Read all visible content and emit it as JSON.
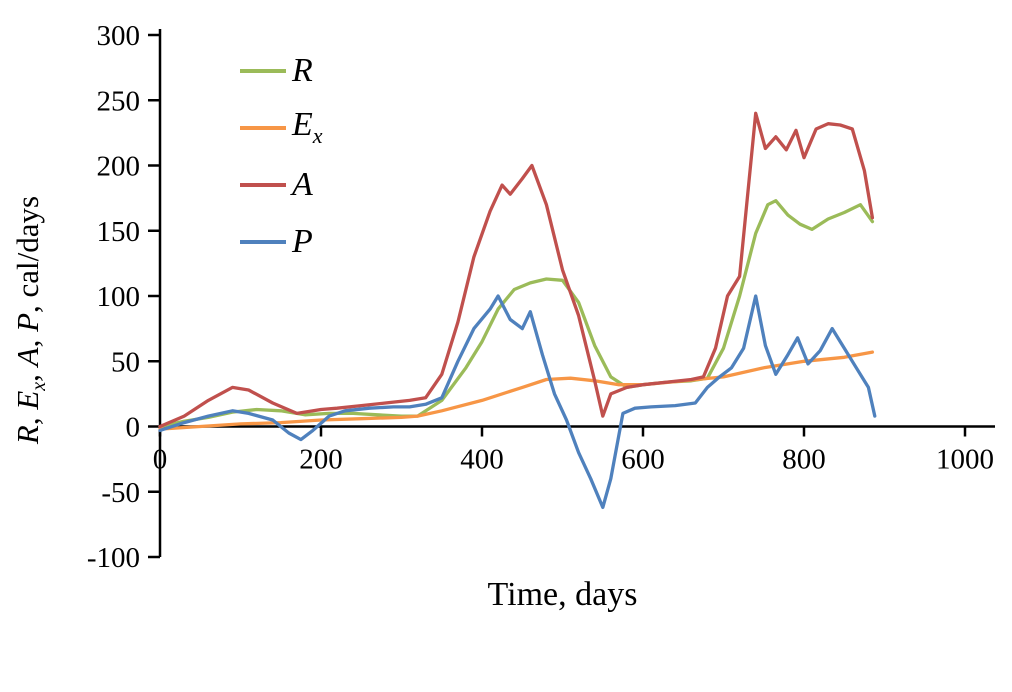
{
  "chart_data": {
    "type": "line",
    "title": "",
    "xlabel": "Time, days",
    "ylabel_plain": "R, Ex, A, P, cal/days",
    "ylabel_parts": [
      {
        "text": "R",
        "italic": true
      },
      {
        "text": ", ",
        "italic": false
      },
      {
        "text": "E",
        "italic": true
      },
      {
        "text": "x",
        "italic": true,
        "sub": true
      },
      {
        "text": ", ",
        "italic": false
      },
      {
        "text": "A",
        "italic": true
      },
      {
        "text": ", ",
        "italic": false
      },
      {
        "text": "P",
        "italic": true
      },
      {
        "text": ", cal/days",
        "italic": false
      }
    ],
    "xlim": [
      0,
      1000
    ],
    "ylim": [
      -100,
      300
    ],
    "x_ticks": [
      0,
      200,
      400,
      600,
      800,
      1000
    ],
    "y_ticks": [
      300,
      250,
      200,
      150,
      100,
      50,
      0,
      -50,
      -100
    ],
    "grid": false,
    "legend_position": "top-left-inside",
    "series": [
      {
        "name": "R",
        "label": "R",
        "color": "#9BBB59",
        "points": [
          [
            0,
            0
          ],
          [
            30,
            4
          ],
          [
            60,
            7
          ],
          [
            90,
            11
          ],
          [
            120,
            13
          ],
          [
            150,
            12
          ],
          [
            180,
            9
          ],
          [
            210,
            10
          ],
          [
            240,
            10
          ],
          [
            270,
            9
          ],
          [
            300,
            8
          ],
          [
            320,
            8
          ],
          [
            350,
            20
          ],
          [
            380,
            45
          ],
          [
            400,
            65
          ],
          [
            420,
            90
          ],
          [
            440,
            105
          ],
          [
            460,
            110
          ],
          [
            480,
            113
          ],
          [
            500,
            112
          ],
          [
            520,
            95
          ],
          [
            540,
            62
          ],
          [
            560,
            38
          ],
          [
            580,
            30
          ],
          [
            600,
            32
          ],
          [
            630,
            34
          ],
          [
            660,
            35
          ],
          [
            680,
            37
          ],
          [
            700,
            60
          ],
          [
            720,
            100
          ],
          [
            740,
            148
          ],
          [
            755,
            170
          ],
          [
            765,
            173
          ],
          [
            780,
            162
          ],
          [
            795,
            155
          ],
          [
            810,
            151
          ],
          [
            830,
            159
          ],
          [
            850,
            164
          ],
          [
            870,
            170
          ],
          [
            885,
            157
          ]
        ]
      },
      {
        "name": "Ex",
        "label": "E_x",
        "color": "#F79646",
        "points": [
          [
            0,
            -2
          ],
          [
            50,
            0
          ],
          [
            100,
            2
          ],
          [
            150,
            3
          ],
          [
            200,
            5
          ],
          [
            250,
            6
          ],
          [
            300,
            7
          ],
          [
            320,
            8
          ],
          [
            350,
            12
          ],
          [
            400,
            20
          ],
          [
            450,
            30
          ],
          [
            480,
            36
          ],
          [
            510,
            37
          ],
          [
            540,
            35
          ],
          [
            570,
            32
          ],
          [
            600,
            32
          ],
          [
            650,
            35
          ],
          [
            700,
            38
          ],
          [
            750,
            45
          ],
          [
            800,
            50
          ],
          [
            850,
            53
          ],
          [
            885,
            57
          ]
        ]
      },
      {
        "name": "A",
        "label": "A",
        "color": "#C0504D",
        "points": [
          [
            0,
            0
          ],
          [
            30,
            8
          ],
          [
            60,
            20
          ],
          [
            90,
            30
          ],
          [
            110,
            28
          ],
          [
            140,
            18
          ],
          [
            170,
            10
          ],
          [
            200,
            13
          ],
          [
            220,
            14
          ],
          [
            250,
            16
          ],
          [
            280,
            18
          ],
          [
            310,
            20
          ],
          [
            330,
            22
          ],
          [
            350,
            40
          ],
          [
            370,
            80
          ],
          [
            390,
            130
          ],
          [
            410,
            165
          ],
          [
            425,
            185
          ],
          [
            435,
            178
          ],
          [
            450,
            190
          ],
          [
            462,
            200
          ],
          [
            480,
            170
          ],
          [
            500,
            120
          ],
          [
            520,
            85
          ],
          [
            540,
            35
          ],
          [
            550,
            8
          ],
          [
            560,
            25
          ],
          [
            580,
            30
          ],
          [
            600,
            32
          ],
          [
            630,
            34
          ],
          [
            660,
            36
          ],
          [
            675,
            38
          ],
          [
            690,
            60
          ],
          [
            705,
            100
          ],
          [
            720,
            115
          ],
          [
            740,
            240
          ],
          [
            752,
            213
          ],
          [
            765,
            222
          ],
          [
            778,
            212
          ],
          [
            790,
            227
          ],
          [
            800,
            206
          ],
          [
            815,
            228
          ],
          [
            830,
            232
          ],
          [
            845,
            231
          ],
          [
            860,
            228
          ],
          [
            875,
            196
          ],
          [
            885,
            160
          ]
        ]
      },
      {
        "name": "P",
        "label": "P",
        "color": "#4F81BD",
        "points": [
          [
            0,
            -3
          ],
          [
            30,
            3
          ],
          [
            60,
            8
          ],
          [
            90,
            12
          ],
          [
            110,
            10
          ],
          [
            140,
            5
          ],
          [
            160,
            -5
          ],
          [
            175,
            -10
          ],
          [
            190,
            -3
          ],
          [
            210,
            8
          ],
          [
            230,
            12
          ],
          [
            260,
            14
          ],
          [
            290,
            15
          ],
          [
            310,
            15
          ],
          [
            330,
            17
          ],
          [
            350,
            22
          ],
          [
            370,
            50
          ],
          [
            390,
            75
          ],
          [
            410,
            90
          ],
          [
            420,
            100
          ],
          [
            435,
            82
          ],
          [
            450,
            75
          ],
          [
            460,
            88
          ],
          [
            475,
            55
          ],
          [
            490,
            25
          ],
          [
            505,
            5
          ],
          [
            520,
            -20
          ],
          [
            535,
            -40
          ],
          [
            550,
            -62
          ],
          [
            560,
            -40
          ],
          [
            575,
            10
          ],
          [
            590,
            14
          ],
          [
            610,
            15
          ],
          [
            640,
            16
          ],
          [
            665,
            18
          ],
          [
            680,
            30
          ],
          [
            695,
            38
          ],
          [
            710,
            45
          ],
          [
            725,
            60
          ],
          [
            740,
            100
          ],
          [
            752,
            62
          ],
          [
            765,
            40
          ],
          [
            780,
            55
          ],
          [
            792,
            68
          ],
          [
            805,
            48
          ],
          [
            820,
            58
          ],
          [
            835,
            75
          ],
          [
            850,
            60
          ],
          [
            865,
            45
          ],
          [
            880,
            30
          ],
          [
            888,
            8
          ]
        ]
      }
    ]
  }
}
